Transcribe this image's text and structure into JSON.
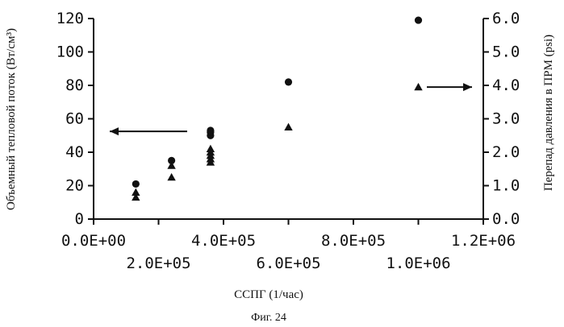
{
  "chart_data": {
    "type": "scatter",
    "xlabel": "ССПГ (1/час)",
    "ylabel_left": "Объемный тепловой поток (Вт/см³)",
    "ylabel_right": "Перепад давления в ПРМ (psi)",
    "caption": "Фиг. 24",
    "xlim": [
      0,
      1200000
    ],
    "ylim_left": [
      0,
      120
    ],
    "ylim_right": [
      0,
      6
    ],
    "x_ticks_top": [
      "0.0E+00",
      "4.0E+05",
      "8.0E+05",
      "1.2E+06"
    ],
    "x_ticks_bottom": [
      "2.0E+05",
      "6.0E+05",
      "1.0E+06"
    ],
    "y_ticks_left": [
      "0",
      "20",
      "40",
      "60",
      "80",
      "100",
      "120"
    ],
    "y_ticks_right": [
      "0.0",
      "1.0",
      "2.0",
      "3.0",
      "4.0",
      "5.0",
      "6.0"
    ],
    "series": [
      {
        "axis": "left",
        "marker": "circle",
        "points": [
          {
            "x": 130000,
            "y": 21
          },
          {
            "x": 240000,
            "y": 35
          },
          {
            "x": 360000,
            "y": 50
          },
          {
            "x": 360000,
            "y": 52
          },
          {
            "x": 360000,
            "y": 53
          },
          {
            "x": 600000,
            "y": 82
          },
          {
            "x": 1000000,
            "y": 119
          }
        ]
      },
      {
        "axis": "right",
        "marker": "triangle",
        "points": [
          {
            "x": 130000,
            "y": 0.65
          },
          {
            "x": 130000,
            "y": 0.8
          },
          {
            "x": 240000,
            "y": 1.25
          },
          {
            "x": 240000,
            "y": 1.6
          },
          {
            "x": 360000,
            "y": 1.7
          },
          {
            "x": 360000,
            "y": 1.8
          },
          {
            "x": 360000,
            "y": 1.9
          },
          {
            "x": 360000,
            "y": 2.0
          },
          {
            "x": 360000,
            "y": 2.1
          },
          {
            "x": 600000,
            "y": 2.75
          },
          {
            "x": 1000000,
            "y": 3.95
          }
        ]
      }
    ],
    "annotations": [
      {
        "kind": "arrow",
        "direction": "left",
        "meaning": "circles use left axis"
      },
      {
        "kind": "arrow",
        "direction": "right",
        "meaning": "triangles use right axis"
      }
    ]
  }
}
